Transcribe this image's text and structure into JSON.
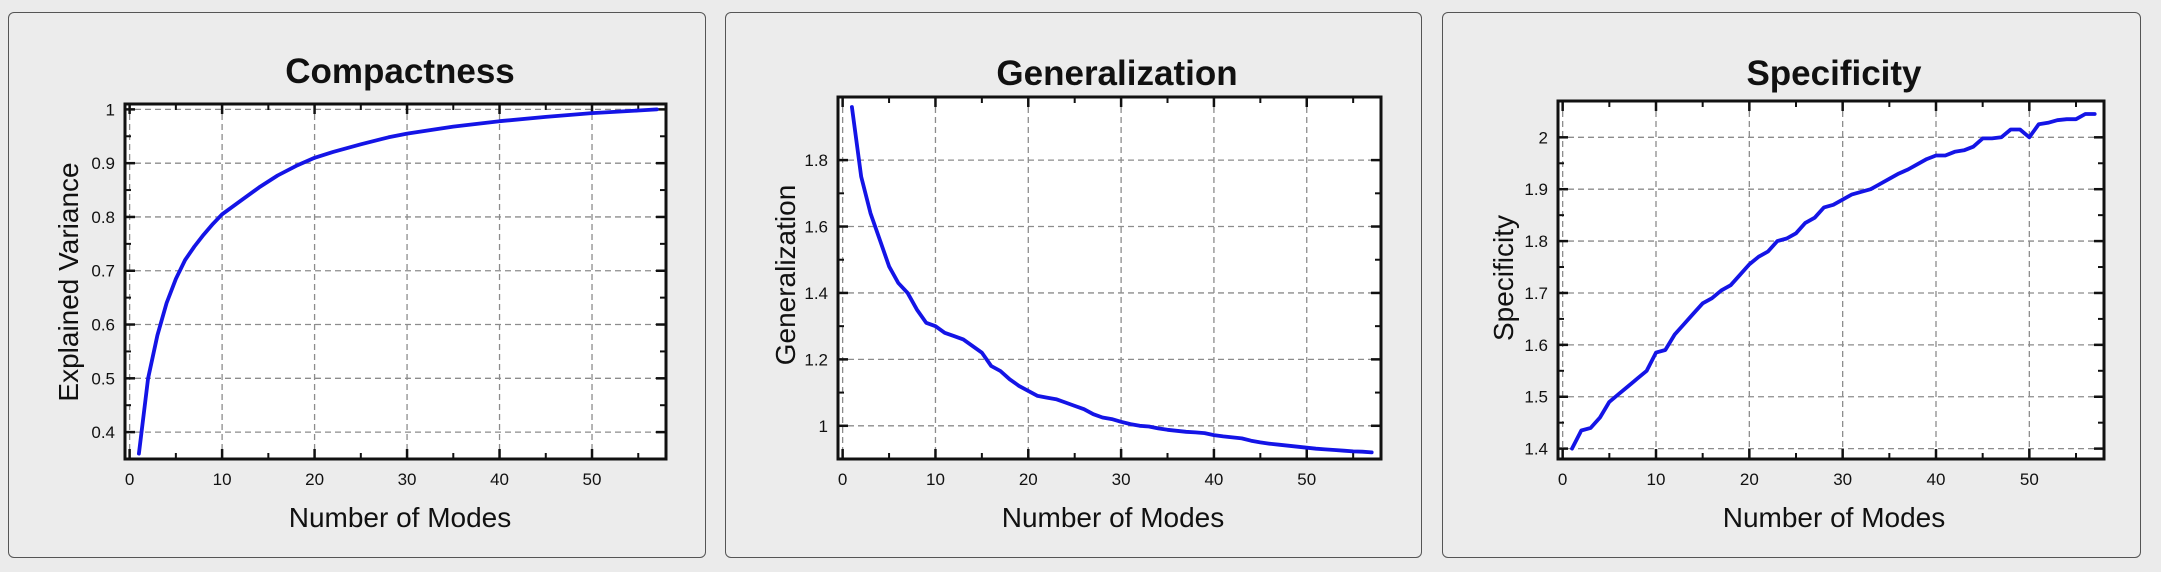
{
  "colors": {
    "background": "#ebebeb",
    "panel": "#ececec",
    "plot_background": "#ffffff",
    "line": "#1414e6",
    "grid": "#8c8c8c",
    "axis": "#111111"
  },
  "chart_data": [
    {
      "type": "line",
      "title": "Compactness",
      "xlabel": "Number of Modes",
      "ylabel": "Explained Variance",
      "xlim": [
        -0.5,
        58
      ],
      "ylim": [
        0.35,
        1.01
      ],
      "xticks": [
        0,
        10,
        20,
        30,
        40,
        50
      ],
      "yticks": [
        0.4,
        0.5,
        0.6,
        0.7,
        0.8,
        0.9,
        1
      ],
      "xtick_labels": [
        "0",
        "10",
        "20",
        "30",
        "40",
        "50"
      ],
      "ytick_labels": [
        "0.4",
        "0.5",
        "0.6",
        "0.7",
        "0.8",
        "0.9",
        "1"
      ],
      "grid": true,
      "series": [
        {
          "x": [
            1,
            2,
            3,
            4,
            5,
            6,
            7,
            8,
            9,
            10,
            12,
            14,
            16,
            18,
            20,
            22,
            25,
            28,
            30,
            35,
            40,
            45,
            50,
            55,
            57
          ],
          "values": [
            0.36,
            0.5,
            0.58,
            0.64,
            0.685,
            0.72,
            0.745,
            0.767,
            0.787,
            0.805,
            0.83,
            0.855,
            0.877,
            0.895,
            0.91,
            0.921,
            0.935,
            0.948,
            0.955,
            0.968,
            0.978,
            0.986,
            0.993,
            0.998,
            1.0
          ]
        }
      ]
    },
    {
      "type": "line",
      "title": "Generalization",
      "xlabel": "Number of Modes",
      "ylabel": "Generalization",
      "xlim": [
        -0.5,
        58
      ],
      "ylim": [
        0.9,
        1.99
      ],
      "xticks": [
        0,
        10,
        20,
        30,
        40,
        50
      ],
      "yticks": [
        1,
        1.2,
        1.4,
        1.6,
        1.8
      ],
      "xtick_labels": [
        "0",
        "10",
        "20",
        "30",
        "40",
        "50"
      ],
      "ytick_labels": [
        "1",
        "1.2",
        "1.4",
        "1.6",
        "1.8"
      ],
      "grid": true,
      "series": [
        {
          "x": [
            1,
            2,
            3,
            4,
            5,
            6,
            7,
            8,
            9,
            10,
            11,
            12,
            13,
            14,
            15,
            16,
            17,
            18,
            19,
            20,
            21,
            22,
            23,
            24,
            25,
            26,
            27,
            28,
            29,
            30,
            31,
            32,
            33,
            34,
            35,
            36,
            37,
            38,
            39,
            40,
            41,
            42,
            43,
            44,
            45,
            46,
            47,
            48,
            49,
            50,
            51,
            52,
            53,
            54,
            55,
            56,
            57
          ],
          "values": [
            1.96,
            1.75,
            1.64,
            1.56,
            1.48,
            1.43,
            1.4,
            1.35,
            1.31,
            1.3,
            1.28,
            1.27,
            1.26,
            1.24,
            1.22,
            1.18,
            1.165,
            1.14,
            1.12,
            1.105,
            1.09,
            1.085,
            1.08,
            1.07,
            1.06,
            1.05,
            1.035,
            1.025,
            1.02,
            1.012,
            1.005,
            1.0,
            0.998,
            0.992,
            0.988,
            0.985,
            0.982,
            0.98,
            0.978,
            0.972,
            0.968,
            0.965,
            0.962,
            0.955,
            0.95,
            0.946,
            0.943,
            0.94,
            0.937,
            0.934,
            0.931,
            0.929,
            0.927,
            0.925,
            0.923,
            0.922,
            0.92
          ]
        }
      ]
    },
    {
      "type": "line",
      "title": "Specificity",
      "xlabel": "Number of Modes",
      "ylabel": "Specificity",
      "xlim": [
        -0.5,
        58
      ],
      "ylim": [
        1.38,
        2.07
      ],
      "xticks": [
        0,
        10,
        20,
        30,
        40,
        50
      ],
      "yticks": [
        1.4,
        1.5,
        1.6,
        1.7,
        1.8,
        1.9,
        2
      ],
      "xtick_labels": [
        "0",
        "10",
        "20",
        "30",
        "40",
        "50"
      ],
      "ytick_labels": [
        "1.4",
        "1.5",
        "1.6",
        "1.7",
        "1.8",
        "1.9",
        "2"
      ],
      "grid": true,
      "series": [
        {
          "x": [
            1,
            2,
            3,
            4,
            5,
            6,
            7,
            8,
            9,
            10,
            11,
            12,
            13,
            14,
            15,
            16,
            17,
            18,
            19,
            20,
            21,
            22,
            23,
            24,
            25,
            26,
            27,
            28,
            29,
            30,
            31,
            32,
            33,
            34,
            35,
            36,
            37,
            38,
            39,
            40,
            41,
            42,
            43,
            44,
            45,
            46,
            47,
            48,
            49,
            50,
            51,
            52,
            53,
            54,
            55,
            56,
            57
          ],
          "values": [
            1.4,
            1.435,
            1.44,
            1.46,
            1.49,
            1.505,
            1.52,
            1.535,
            1.55,
            1.585,
            1.59,
            1.62,
            1.64,
            1.66,
            1.68,
            1.69,
            1.705,
            1.715,
            1.735,
            1.755,
            1.77,
            1.78,
            1.8,
            1.805,
            1.815,
            1.835,
            1.845,
            1.865,
            1.87,
            1.88,
            1.89,
            1.895,
            1.9,
            1.91,
            1.92,
            1.93,
            1.938,
            1.948,
            1.958,
            1.965,
            1.965,
            1.972,
            1.975,
            1.982,
            1.998,
            1.998,
            2.0,
            2.015,
            2.015,
            2.0,
            2.025,
            2.028,
            2.033,
            2.035,
            2.035,
            2.045,
            2.045
          ]
        }
      ]
    }
  ]
}
